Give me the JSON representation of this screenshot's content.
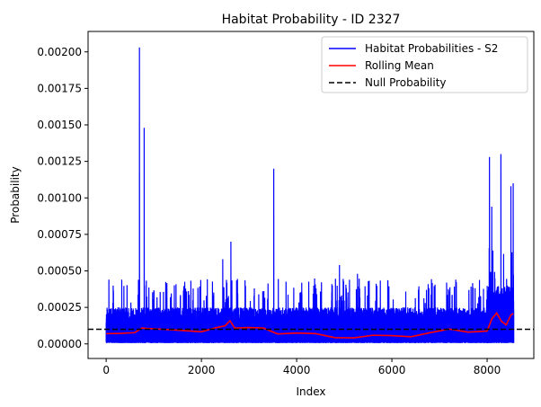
{
  "chart_data": {
    "type": "line",
    "title": "Habitat Probability - ID 2327",
    "xlabel": "Index",
    "ylabel": "Probability",
    "xlim": [
      -380,
      8980
    ],
    "ylim": [
      -0.0001,
      0.00214
    ],
    "x_ticks": [
      0,
      2000,
      4000,
      6000,
      8000
    ],
    "x_tick_labels": [
      "0",
      "2000",
      "4000",
      "6000",
      "8000"
    ],
    "y_ticks": [
      0,
      0.00025,
      0.0005,
      0.00075,
      0.001,
      0.00125,
      0.0015,
      0.00175,
      0.002
    ],
    "y_tick_labels": [
      "0.00000",
      "0.00025",
      "0.00050",
      "0.00075",
      "0.00100",
      "0.00125",
      "0.00150",
      "0.00175",
      "0.00200"
    ],
    "grid": false,
    "legend_position": "top-right",
    "series": [
      {
        "name": "Habitat Probabilities - S2",
        "color": "#0000ff",
        "style": "solid",
        "x_range": [
          0,
          8560
        ],
        "typical_band": [
          1e-05,
          0.00025
        ],
        "spikes": [
          {
            "x": 700,
            "y": 0.00203
          },
          {
            "x": 800,
            "y": 0.00148
          },
          {
            "x": 330,
            "y": 0.00044
          },
          {
            "x": 2450,
            "y": 0.00058
          },
          {
            "x": 2620,
            "y": 0.0007
          },
          {
            "x": 3520,
            "y": 0.0012
          },
          {
            "x": 4900,
            "y": 0.00054
          },
          {
            "x": 5280,
            "y": 0.00048
          },
          {
            "x": 7150,
            "y": 0.00042
          },
          {
            "x": 8050,
            "y": 0.00128
          },
          {
            "x": 8100,
            "y": 0.00094
          },
          {
            "x": 8290,
            "y": 0.0013
          },
          {
            "x": 8500,
            "y": 0.00108
          },
          {
            "x": 8550,
            "y": 0.0011
          }
        ]
      },
      {
        "name": "Rolling Mean",
        "color": "#ff0000",
        "style": "solid",
        "x": [
          0,
          300,
          600,
          750,
          850,
          1200,
          1600,
          2000,
          2300,
          2500,
          2600,
          2700,
          3000,
          3300,
          3600,
          4000,
          4400,
          4800,
          5200,
          5600,
          6000,
          6400,
          6800,
          7200,
          7600,
          8000,
          8100,
          8200,
          8300,
          8400,
          8500,
          8550
        ],
        "y": [
          7e-05,
          6e-05,
          8e-05,
          0.00012,
          0.0001,
          9e-05,
          0.0001,
          9e-05,
          0.0001,
          0.00012,
          0.00017,
          0.00011,
          0.0001,
          0.00011,
          8e-05,
          7e-05,
          6e-05,
          5e-05,
          5e-05,
          5e-05,
          5e-05,
          6e-05,
          8e-05,
          9e-05,
          8e-05,
          0.0001,
          0.00017,
          0.0002,
          0.00016,
          0.00014,
          0.00019,
          0.0002
        ]
      },
      {
        "name": "Null Probability",
        "color": "#000000",
        "style": "dashed",
        "y_constant": 0.0001
      }
    ]
  }
}
